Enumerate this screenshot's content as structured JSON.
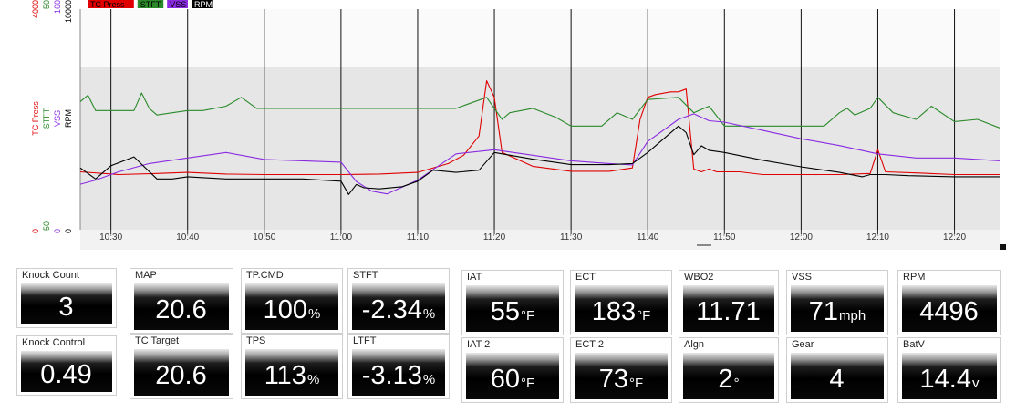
{
  "chart": {
    "legend": [
      {
        "name": "TC Press",
        "color": "#e00000"
      },
      {
        "name": "STFT",
        "color": "#2a8a2a"
      },
      {
        "name": "VSS",
        "color": "#8a2be2"
      },
      {
        "name": "RPM",
        "color": "#000000"
      }
    ],
    "axis_labels": [
      {
        "text": "TC Press",
        "color": "#e00000",
        "max": "4000",
        "min": "0"
      },
      {
        "text": "STFT",
        "color": "#2a8a2a",
        "max": "50",
        "min": "-50"
      },
      {
        "text": "VSS",
        "color": "#8a2be2",
        "max": "160",
        "min": "0"
      },
      {
        "text": "RPM",
        "color": "#000000",
        "max": "10000",
        "min": "0"
      }
    ]
  },
  "chart_data": {
    "type": "line",
    "x_ticks": [
      "10:30",
      "10:40",
      "10:50",
      "11:00",
      "11:10",
      "11:20",
      "11:30",
      "11:40",
      "11:50",
      "12:00",
      "12:10",
      "12:20"
    ],
    "x_range": [
      "10:26",
      "12:26"
    ],
    "grid": true,
    "legend_position": "top-left",
    "series": [
      {
        "name": "TC Press",
        "axis": {
          "min": 0,
          "max": 4000
        },
        "x": [
          "10:26",
          "10:31",
          "10:36",
          "10:40",
          "10:45",
          "10:50",
          "10:55",
          "11:00",
          "11:05",
          "11:10",
          "11:14",
          "11:16",
          "11:18",
          "11:19",
          "11:20",
          "11:21",
          "11:25",
          "11:30",
          "11:35",
          "11:38",
          "11:39",
          "11:40",
          "11:41",
          "11:43",
          "11:44",
          "11:45",
          "11:46",
          "11:47",
          "11:48",
          "11:49",
          "11:52",
          "11:55",
          "12:00",
          "12:05",
          "12:09",
          "12:10",
          "12:11",
          "12:15",
          "12:20",
          "12:26"
        ],
        "y": [
          1050,
          1000,
          1020,
          1040,
          1010,
          1000,
          1000,
          1000,
          1010,
          1040,
          1200,
          1350,
          1700,
          2700,
          2400,
          1400,
          1150,
          1060,
          1060,
          1120,
          2000,
          2400,
          2450,
          2500,
          2500,
          2550,
          1100,
          1050,
          1100,
          1050,
          1050,
          1000,
          1000,
          1000,
          1020,
          1450,
          1050,
          1030,
          1000,
          1000
        ]
      },
      {
        "name": "STFT",
        "axis": {
          "min": -50,
          "max": 50
        },
        "x": [
          "10:26",
          "10:27",
          "10:28",
          "10:30",
          "10:33",
          "10:34",
          "10:35",
          "10:36",
          "10:38",
          "10:40",
          "10:42",
          "10:45",
          "10:47",
          "10:49",
          "10:52",
          "10:55",
          "11:00",
          "11:05",
          "11:10",
          "11:15",
          "11:19",
          "11:20",
          "11:21",
          "11:22",
          "11:25",
          "11:28",
          "11:30",
          "11:34",
          "11:36",
          "11:38",
          "11:40",
          "11:44",
          "11:46",
          "11:48",
          "11:50",
          "11:55",
          "12:00",
          "12:03",
          "12:05",
          "12:06",
          "12:07",
          "12:09",
          "12:10",
          "12:12",
          "12:15",
          "12:17",
          "12:20",
          "12:23",
          "12:26"
        ],
        "y": [
          8,
          11,
          4,
          4,
          4,
          12,
          5,
          2,
          3,
          4,
          4,
          6,
          10,
          5,
          5,
          5,
          5,
          5,
          5,
          5,
          10,
          5,
          0,
          3,
          5,
          1,
          -3,
          -3,
          3,
          0,
          9,
          10,
          3,
          6,
          -3,
          -3,
          -3,
          -3,
          3,
          5,
          2,
          5,
          10,
          3,
          0,
          6,
          -1,
          0,
          -4
        ]
      },
      {
        "name": "VSS",
        "axis": {
          "min": 0,
          "max": 160
        },
        "x": [
          "10:26",
          "10:28",
          "10:31",
          "10:35",
          "10:40",
          "10:45",
          "10:50",
          "10:55",
          "11:00",
          "11:02",
          "11:04",
          "11:06",
          "11:10",
          "11:15",
          "11:20",
          "11:25",
          "11:30",
          "11:35",
          "11:38",
          "11:40",
          "11:44",
          "11:46",
          "11:48",
          "11:50",
          "11:55",
          "12:00",
          "12:05",
          "12:10",
          "12:15",
          "12:20",
          "12:26"
        ],
        "y": [
          33,
          36,
          42,
          48,
          52,
          56,
          51,
          50,
          49,
          35,
          28,
          26,
          36,
          55,
          58,
          54,
          50,
          48,
          47,
          64,
          80,
          84,
          79,
          78,
          72,
          66,
          61,
          55,
          52,
          52,
          50
        ]
      },
      {
        "name": "RPM",
        "axis": {
          "min": 0,
          "max": 10000
        },
        "x": [
          "10:26",
          "10:28",
          "10:30",
          "10:33",
          "10:36",
          "10:38",
          "10:40",
          "10:45",
          "10:50",
          "10:55",
          "11:00",
          "11:01",
          "11:02",
          "11:03",
          "11:05",
          "11:08",
          "11:10",
          "11:12",
          "11:15",
          "11:18",
          "11:20",
          "11:25",
          "11:30",
          "11:35",
          "11:38",
          "11:40",
          "11:44",
          "11:45",
          "11:46",
          "11:47",
          "11:48",
          "11:50",
          "11:55",
          "12:00",
          "12:05",
          "12:08",
          "12:09",
          "12:11",
          "12:14",
          "12:20",
          "12:26"
        ],
        "y": [
          2800,
          2300,
          2900,
          3300,
          2300,
          2300,
          2400,
          2300,
          2300,
          2300,
          2200,
          1600,
          2050,
          1900,
          1850,
          1950,
          2200,
          2700,
          2600,
          2700,
          3500,
          3200,
          2950,
          2950,
          3000,
          3500,
          4700,
          4400,
          3400,
          3800,
          3600,
          3500,
          3150,
          2850,
          2600,
          2400,
          2500,
          2500,
          2450,
          2400,
          2400
        ]
      }
    ]
  },
  "gauges": [
    {
      "label": "Knock Count",
      "value": "3",
      "unit": ""
    },
    {
      "label": "Knock Control",
      "value": "0.49",
      "unit": ""
    },
    {
      "label": "MAP",
      "value": "20.6",
      "unit": ""
    },
    {
      "label": "TC Target",
      "value": "20.6",
      "unit": ""
    },
    {
      "label": "TP.CMD",
      "value": "100",
      "unit": "%"
    },
    {
      "label": "TPS",
      "value": "113",
      "unit": "%"
    },
    {
      "label": "STFT",
      "value": "-2.34",
      "unit": "%"
    },
    {
      "label": "LTFT",
      "value": "-3.13",
      "unit": "%"
    },
    {
      "label": "IAT",
      "value": "55",
      "unit": "°F"
    },
    {
      "label": "IAT 2",
      "value": "60",
      "unit": "°F"
    },
    {
      "label": "ECT",
      "value": "183",
      "unit": "°F"
    },
    {
      "label": "ECT 2",
      "value": "73",
      "unit": "°F"
    },
    {
      "label": "WBO2",
      "value": "11.71",
      "unit": ""
    },
    {
      "label": "Algn",
      "value": "2",
      "unit": "°"
    },
    {
      "label": "VSS",
      "value": "71",
      "unit": "mph"
    },
    {
      "label": "Gear",
      "value": "4",
      "unit": ""
    },
    {
      "label": "RPM",
      "value": "4496",
      "unit": ""
    },
    {
      "label": "BatV",
      "value": "14.4",
      "unit": "v"
    }
  ]
}
